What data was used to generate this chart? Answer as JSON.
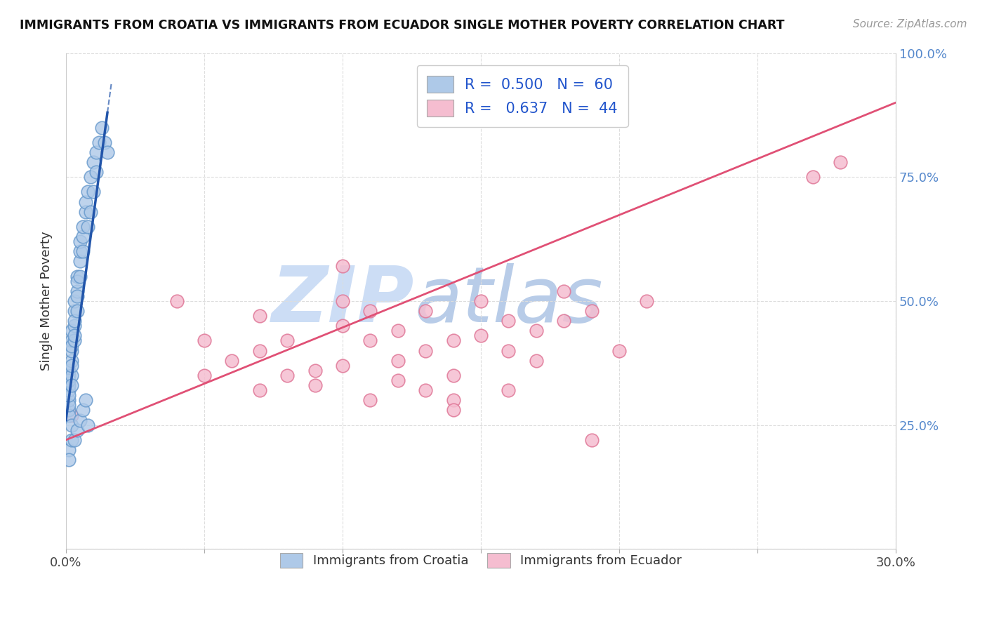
{
  "title": "IMMIGRANTS FROM CROATIA VS IMMIGRANTS FROM ECUADOR SINGLE MOTHER POVERTY CORRELATION CHART",
  "source": "Source: ZipAtlas.com",
  "ylabel": "Single Mother Poverty",
  "xlim": [
    0.0,
    0.3
  ],
  "ylim": [
    0.0,
    1.0
  ],
  "xticks": [
    0.0,
    0.05,
    0.1,
    0.15,
    0.2,
    0.25,
    0.3
  ],
  "xticklabels": [
    "0.0%",
    "",
    "",
    "",
    "",
    "",
    "30.0%"
  ],
  "yticks": [
    0.0,
    0.25,
    0.5,
    0.75,
    1.0
  ],
  "yticklabels_right": [
    "",
    "25.0%",
    "50.0%",
    "75.0%",
    "100.0%"
  ],
  "croatia_color": "#aec9e8",
  "ecuador_color": "#f5bdd0",
  "croatia_edge": "#6699cc",
  "ecuador_edge": "#e07898",
  "croatia_line_color": "#2255aa",
  "ecuador_line_color": "#e05075",
  "watermark_zip": "ZIP",
  "watermark_atlas": "atlas",
  "watermark_color": "#ccddf5",
  "watermark_atlas_color": "#b8cce8",
  "croatia_x": [
    0.001,
    0.001,
    0.001,
    0.001,
    0.001,
    0.001,
    0.001,
    0.001,
    0.001,
    0.001,
    0.002,
    0.002,
    0.002,
    0.002,
    0.002,
    0.002,
    0.002,
    0.002,
    0.003,
    0.003,
    0.003,
    0.003,
    0.003,
    0.003,
    0.004,
    0.004,
    0.004,
    0.004,
    0.004,
    0.005,
    0.005,
    0.005,
    0.005,
    0.006,
    0.006,
    0.006,
    0.007,
    0.007,
    0.008,
    0.008,
    0.009,
    0.009,
    0.01,
    0.01,
    0.011,
    0.011,
    0.012,
    0.013,
    0.014,
    0.015,
    0.001,
    0.001,
    0.002,
    0.002,
    0.003,
    0.004,
    0.005,
    0.006,
    0.007,
    0.008
  ],
  "croatia_y": [
    0.28,
    0.3,
    0.32,
    0.33,
    0.35,
    0.36,
    0.27,
    0.29,
    0.31,
    0.34,
    0.38,
    0.4,
    0.42,
    0.35,
    0.37,
    0.33,
    0.41,
    0.44,
    0.45,
    0.48,
    0.5,
    0.42,
    0.46,
    0.43,
    0.52,
    0.55,
    0.48,
    0.51,
    0.54,
    0.58,
    0.6,
    0.55,
    0.62,
    0.63,
    0.65,
    0.6,
    0.68,
    0.7,
    0.72,
    0.65,
    0.75,
    0.68,
    0.78,
    0.72,
    0.8,
    0.76,
    0.82,
    0.85,
    0.82,
    0.8,
    0.2,
    0.18,
    0.22,
    0.25,
    0.22,
    0.24,
    0.26,
    0.28,
    0.3,
    0.25
  ],
  "ecuador_x": [
    0.002,
    0.04,
    0.05,
    0.05,
    0.06,
    0.07,
    0.07,
    0.08,
    0.09,
    0.1,
    0.1,
    0.11,
    0.11,
    0.12,
    0.12,
    0.13,
    0.13,
    0.14,
    0.14,
    0.15,
    0.15,
    0.16,
    0.16,
    0.17,
    0.17,
    0.18,
    0.18,
    0.19,
    0.2,
    0.21,
    0.07,
    0.08,
    0.09,
    0.1,
    0.11,
    0.12,
    0.13,
    0.14,
    0.27,
    0.28,
    0.16,
    0.14,
    0.19,
    0.1
  ],
  "ecuador_y": [
    0.27,
    0.5,
    0.35,
    0.42,
    0.38,
    0.4,
    0.47,
    0.42,
    0.36,
    0.45,
    0.5,
    0.42,
    0.48,
    0.38,
    0.44,
    0.4,
    0.48,
    0.35,
    0.42,
    0.43,
    0.5,
    0.4,
    0.46,
    0.38,
    0.44,
    0.46,
    0.52,
    0.48,
    0.4,
    0.5,
    0.32,
    0.35,
    0.33,
    0.37,
    0.3,
    0.34,
    0.32,
    0.3,
    0.75,
    0.78,
    0.32,
    0.28,
    0.22,
    0.57
  ],
  "ecuador_trend_x0": 0.0,
  "ecuador_trend_y0": 0.22,
  "ecuador_trend_x1": 0.3,
  "ecuador_trend_y1": 0.9,
  "croatia_trend_x0": 0.0,
  "croatia_trend_y0": 0.26,
  "croatia_trend_x1": 0.015,
  "croatia_trend_y1": 0.88,
  "bg_color": "#ffffff",
  "grid_color": "#dddddd",
  "grid_style": "--"
}
